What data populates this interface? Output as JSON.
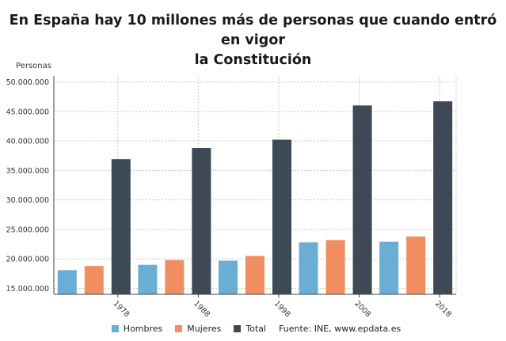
{
  "chart_data": {
    "type": "bar",
    "title_lines": [
      "En España hay 10 millones más de personas que cuando entró en vigor",
      "la Constitución"
    ],
    "ylabel": "Personas",
    "xlabel": "",
    "categories": [
      "1978",
      "1988",
      "1998",
      "2008",
      "2018"
    ],
    "ylim": [
      14000000,
      51000000
    ],
    "yticks": [
      15000000,
      20000000,
      25000000,
      30000000,
      35000000,
      40000000,
      45000000,
      50000000
    ],
    "ytick_labels": [
      "15.000.000",
      "20.000.000",
      "25.000.000",
      "30.000.000",
      "35.000.000",
      "40.000.000",
      "45.000.000",
      "50.000.000"
    ],
    "series": [
      {
        "name": "Hombres",
        "color": "#6aaed6",
        "values": [
          18100000,
          19000000,
          19700000,
          22800000,
          22900000
        ]
      },
      {
        "name": "Mujeres",
        "color": "#f08e61",
        "values": [
          18800000,
          19800000,
          20500000,
          23200000,
          23800000
        ]
      },
      {
        "name": "Total",
        "color": "#3d4a55",
        "values": [
          36900000,
          38800000,
          40200000,
          46000000,
          46700000
        ]
      }
    ],
    "grid": true,
    "legend_position": "bottom",
    "source": "Fuente: INE, www.epdata.es"
  }
}
